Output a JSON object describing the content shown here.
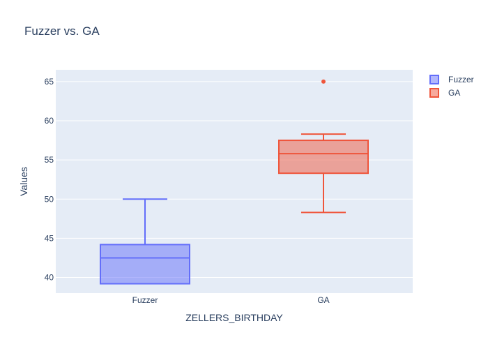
{
  "chart_data": {
    "type": "box",
    "title": "Fuzzer vs. GA",
    "xlabel": "ZELLERS_BIRTHDAY",
    "ylabel": "Values",
    "ylim": [
      38.0,
      66.5
    ],
    "yticks": [
      40,
      45,
      50,
      55,
      60,
      65
    ],
    "categories": [
      "Fuzzer",
      "GA"
    ],
    "grid": true,
    "legend_position": "top-right",
    "series": [
      {
        "name": "Fuzzer",
        "color": "#636efa",
        "fill": "rgba(99,110,250,0.5)",
        "min": 39.2,
        "q1": 39.2,
        "median": 42.5,
        "q3": 44.2,
        "max": 50.0,
        "outliers": []
      },
      {
        "name": "GA",
        "color": "#ef553b",
        "fill": "rgba(239,85,59,0.5)",
        "min": 48.3,
        "q1": 53.3,
        "median": 55.8,
        "q3": 57.5,
        "max": 58.3,
        "outliers": [
          65.0
        ]
      }
    ]
  }
}
